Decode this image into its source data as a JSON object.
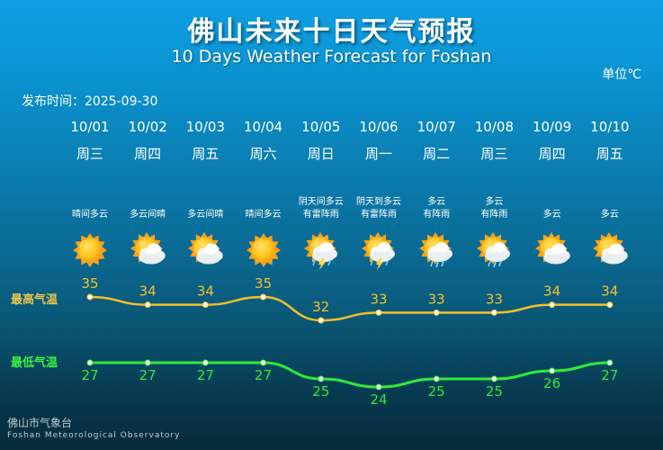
{
  "header": {
    "title": "佛山未来十日天气预报",
    "subtitle": "10 Days Weather Forecast for Foshan",
    "unit": "单位℃",
    "issue_time": "发布时间：2025-09-30"
  },
  "days": [
    {
      "date": "10/01",
      "weekday": "周三",
      "weather": "晴间多云",
      "icon": "sun-icon"
    },
    {
      "date": "10/02",
      "weekday": "周四",
      "weather": "多云间晴",
      "icon": "sun-cloud-icon"
    },
    {
      "date": "10/03",
      "weekday": "周五",
      "weather": "多云间晴",
      "icon": "sun-cloud-icon"
    },
    {
      "date": "10/04",
      "weekday": "周六",
      "weather": "晴间多云",
      "icon": "sun-icon"
    },
    {
      "date": "10/05",
      "weekday": "周日",
      "weather": "阴天间多云\n有雷阵雨",
      "icon": "thunderstorm-icon"
    },
    {
      "date": "10/06",
      "weekday": "周一",
      "weather": "阴天到多云\n有雷阵雨",
      "icon": "thunderstorm-icon"
    },
    {
      "date": "10/07",
      "weekday": "周二",
      "weather": "多云\n有阵雨",
      "icon": "shower-icon"
    },
    {
      "date": "10/08",
      "weekday": "周三",
      "weather": "多云\n有阵雨",
      "icon": "shower-icon"
    },
    {
      "date": "10/09",
      "weekday": "周四",
      "weather": "多云",
      "icon": "cloudy-icon"
    },
    {
      "date": "10/10",
      "weekday": "周五",
      "weather": "多云",
      "icon": "cloudy-icon"
    }
  ],
  "chart_data": {
    "type": "line",
    "categories": [
      "10/01",
      "10/02",
      "10/03",
      "10/04",
      "10/05",
      "10/06",
      "10/07",
      "10/08",
      "10/09",
      "10/10"
    ],
    "series": [
      {
        "name": "最高气温",
        "values": [
          35,
          34,
          34,
          35,
          32,
          33,
          33,
          33,
          34,
          34
        ],
        "color": "#f5c02a"
      },
      {
        "name": "最低气温",
        "values": [
          27,
          27,
          27,
          27,
          25,
          24,
          25,
          25,
          26,
          27
        ],
        "color": "#2eea3c"
      }
    ],
    "legend_placement": "left",
    "grid": false
  },
  "footer": {
    "org_cn": "佛山市气象台",
    "org_en": "Foshan Meteorological Observatory"
  },
  "colors": {
    "high": "#f5c02a",
    "low": "#2eea3c",
    "label_high": "#e9c64a",
    "label_low": "#38f045"
  }
}
